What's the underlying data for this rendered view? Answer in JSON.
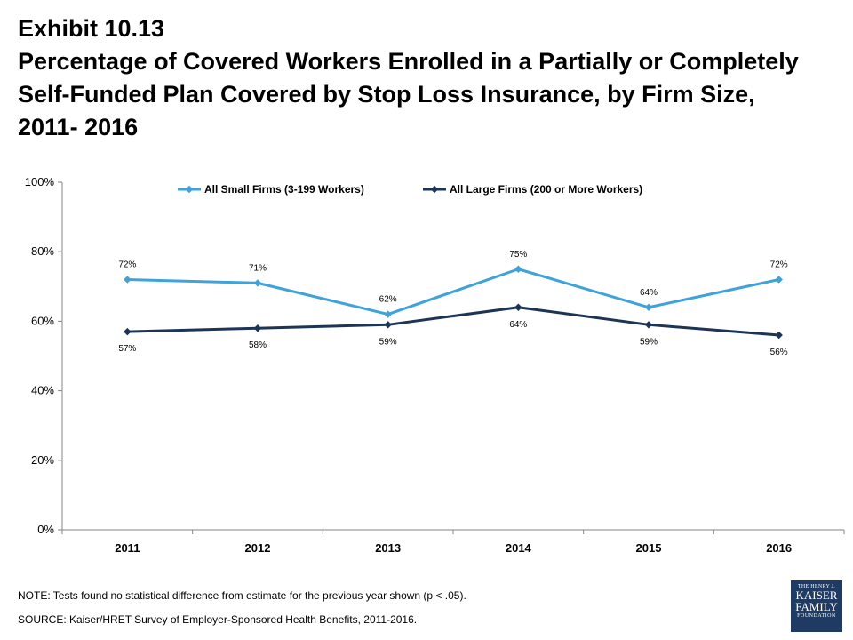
{
  "header": {
    "exhibit": "Exhibit 10.13",
    "title_line1": "Percentage of Covered Workers Enrolled in a Partially or Completely",
    "title_line2": "Self-Funded Plan Covered by Stop Loss Insurance, by Firm Size,",
    "title_line3": "2011- 2016"
  },
  "chart_data": {
    "type": "line",
    "title": "Percentage of Covered Workers Enrolled in a Partially or Completely Self-Funded Plan Covered by Stop Loss Insurance, by Firm Size, 2011- 2016",
    "categories": [
      "2011",
      "2012",
      "2013",
      "2014",
      "2015",
      "2016"
    ],
    "ylim": [
      0,
      100
    ],
    "yticks": [
      0,
      20,
      40,
      60,
      80,
      100
    ],
    "ytick_labels": [
      "0%",
      "20%",
      "40%",
      "60%",
      "80%",
      "100%"
    ],
    "grid": false,
    "legend_position": "top",
    "series": [
      {
        "name": "All Small Firms (3-199 Workers)",
        "color": "#3fa3db",
        "values": [
          72,
          71,
          62,
          75,
          64,
          72
        ],
        "labels": [
          "72%",
          "71%",
          "62%",
          "75%",
          "64%",
          "72%"
        ],
        "label_position": "above"
      },
      {
        "name": "All Large Firms (200 or More Workers)",
        "color": "#1c3557",
        "values": [
          57,
          58,
          59,
          64,
          59,
          56
        ],
        "labels": [
          "57%",
          "58%",
          "59%",
          "64%",
          "59%",
          "56%"
        ],
        "label_position": "below"
      }
    ]
  },
  "footer": {
    "note": "NOTE: Tests found no statistical difference from estimate for the previous year shown (p < .05).",
    "source": "SOURCE:  Kaiser/HRET Survey of Employer-Sponsored Health Benefits, 2011-2016."
  },
  "logo": {
    "line1": "THE HENRY J.",
    "line2": "KAISER",
    "line3": "FAMILY",
    "line4": "FOUNDATION",
    "color": "#1f3b63"
  }
}
